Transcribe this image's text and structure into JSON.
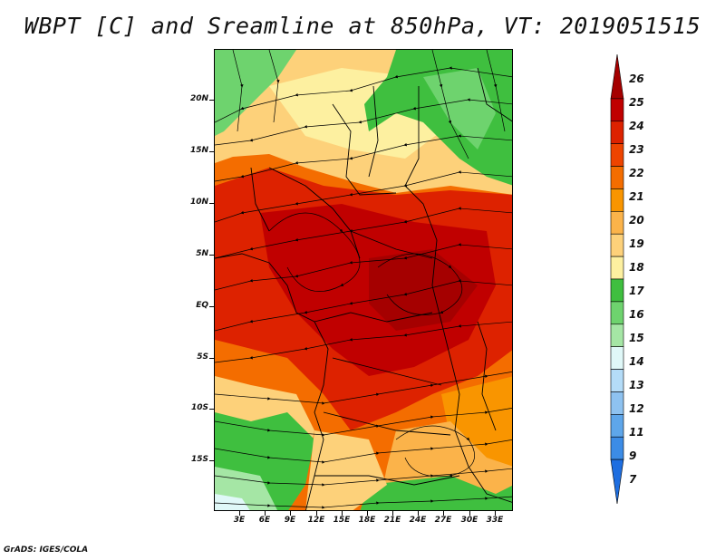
{
  "title": "WBPT [C] and Sreamline at 850hPa, VT: 2019051515",
  "map": {
    "lat_labels": [
      "20N",
      "15N",
      "10N",
      "5N",
      "EQ",
      "5S",
      "10S",
      "15S"
    ],
    "lon_labels": [
      "3E",
      "6E",
      "9E",
      "12E",
      "15E",
      "18E",
      "21E",
      "24E",
      "27E",
      "30E",
      "33E"
    ]
  },
  "colorbar": {
    "labels": [
      "26",
      "25",
      "24",
      "23",
      "22",
      "21",
      "20",
      "19",
      "18",
      "17",
      "16",
      "15",
      "14",
      "13",
      "12",
      "11",
      "9",
      "7"
    ],
    "colors": [
      "#a50000",
      "#c00000",
      "#dd2200",
      "#ee4400",
      "#f46d00",
      "#f99500",
      "#fbb34a",
      "#fdd17a",
      "#fdf0a0",
      "#3fbf3f",
      "#6ed36e",
      "#a5e6a5",
      "#e0f8f8",
      "#b4dcf8",
      "#8ec2f0",
      "#5ea6ea",
      "#3c8ce6",
      "#1e6ee0"
    ]
  },
  "footer": "GrADS: IGES/COLA"
}
